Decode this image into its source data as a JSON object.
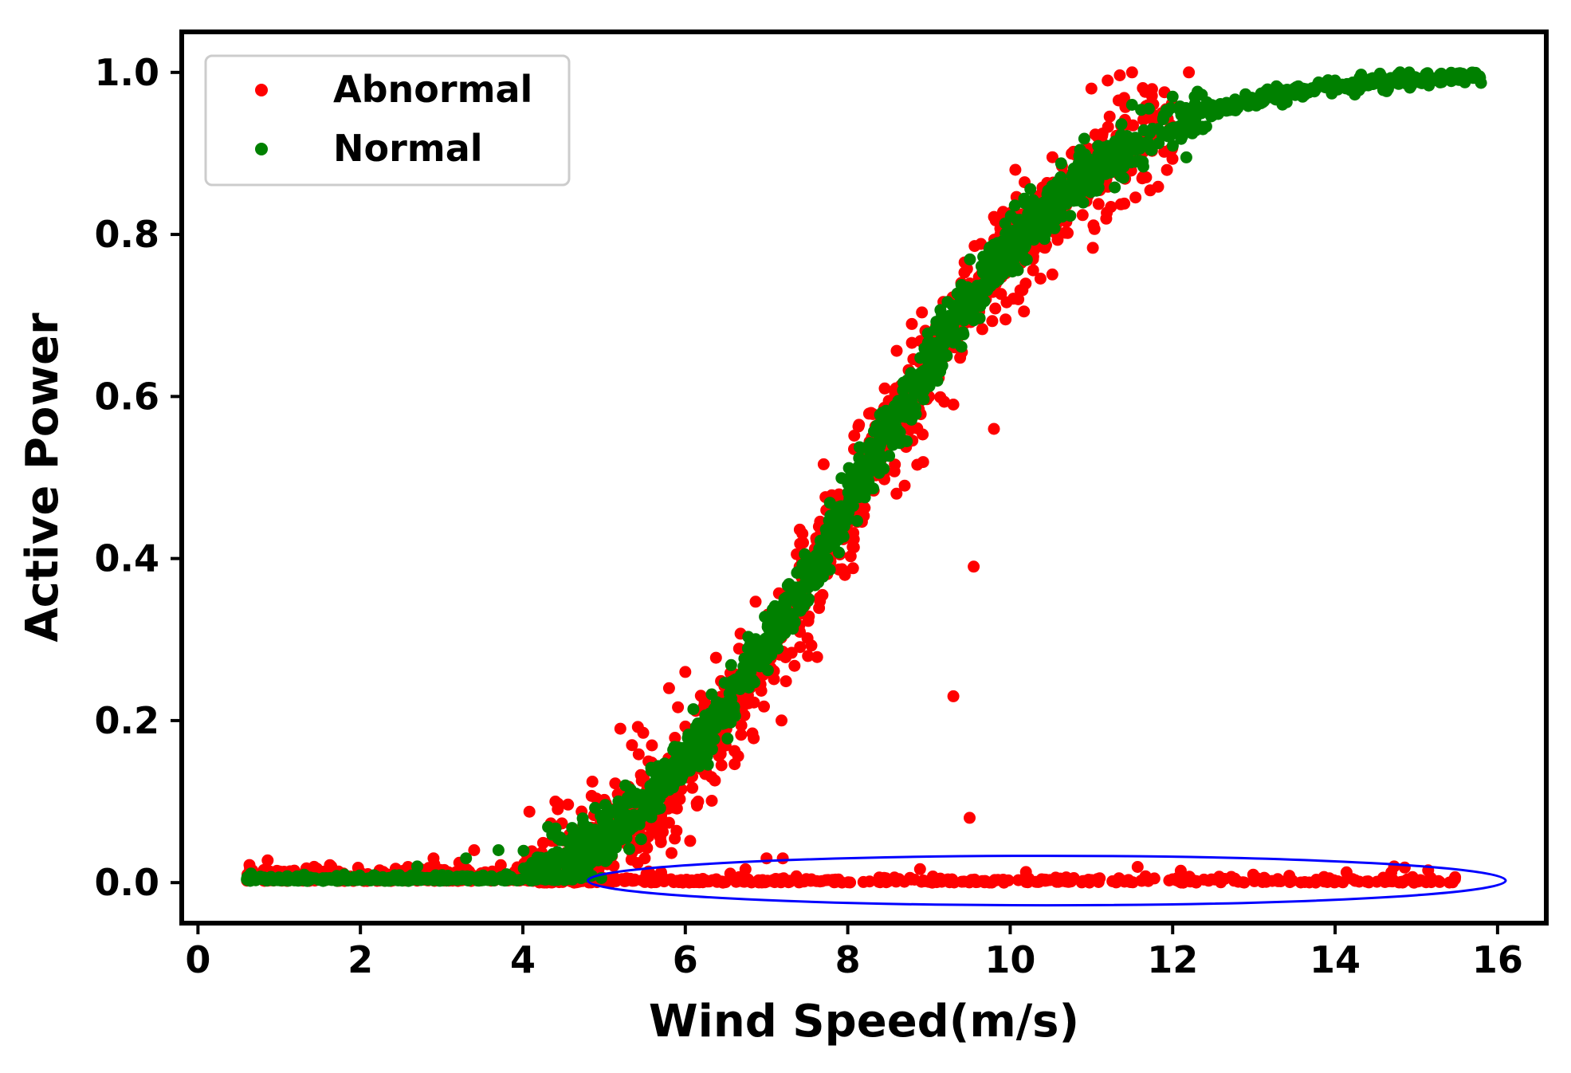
{
  "chart_data": {
    "type": "scatter",
    "title": "",
    "xlabel": "Wind Speed(m/s)",
    "ylabel": "Active Power",
    "xlim": [
      -0.2,
      16.6
    ],
    "ylim": [
      -0.05,
      1.05
    ],
    "xticks": [
      0,
      2,
      4,
      6,
      8,
      10,
      12,
      14,
      16
    ],
    "xtick_labels": [
      "0",
      "2",
      "4",
      "6",
      "8",
      "10",
      "12",
      "14",
      "16"
    ],
    "yticks": [
      0.0,
      0.2,
      0.4,
      0.6,
      0.8,
      1.0
    ],
    "ytick_labels": [
      "0.0",
      "0.2",
      "0.4",
      "0.6",
      "0.8",
      "1.0"
    ],
    "grid": false,
    "legend_position": "top-left",
    "series": [
      {
        "name": "Abnormal",
        "color": "#ff0000",
        "curve": {
          "x_start": 0.6,
          "x_end": 12.0,
          "scatter": 0.035,
          "count": 1300
        },
        "zero_band": {
          "x_start": 4.2,
          "x_end": 15.6,
          "y": 0.0,
          "count": 420
        },
        "sparse_points": [
          {
            "x": 2.2,
            "y": 0.01
          },
          {
            "x": 2.9,
            "y": 0.03
          },
          {
            "x": 3.4,
            "y": 0.04
          },
          {
            "x": 4.4,
            "y": 0.1
          },
          {
            "x": 5.2,
            "y": 0.19
          },
          {
            "x": 5.5,
            "y": 0.03
          },
          {
            "x": 5.6,
            "y": 0.08
          },
          {
            "x": 5.7,
            "y": 0.05
          },
          {
            "x": 5.8,
            "y": 0.24
          },
          {
            "x": 6.0,
            "y": 0.26
          },
          {
            "x": 7.0,
            "y": 0.03
          },
          {
            "x": 7.2,
            "y": 0.03
          },
          {
            "x": 8.4,
            "y": 0.51
          },
          {
            "x": 8.6,
            "y": 0.48
          },
          {
            "x": 8.7,
            "y": 0.49
          },
          {
            "x": 9.0,
            "y": 0.6
          },
          {
            "x": 9.2,
            "y": 0.66
          },
          {
            "x": 9.3,
            "y": 0.59
          },
          {
            "x": 9.3,
            "y": 0.23
          },
          {
            "x": 9.5,
            "y": 0.08
          },
          {
            "x": 9.55,
            "y": 0.39
          },
          {
            "x": 9.6,
            "y": 0.7
          },
          {
            "x": 9.7,
            "y": 0.72
          },
          {
            "x": 9.8,
            "y": 0.56
          },
          {
            "x": 10.0,
            "y": 0.81
          },
          {
            "x": 10.1,
            "y": 0.72
          },
          {
            "x": 10.5,
            "y": 0.85
          },
          {
            "x": 10.8,
            "y": 0.88
          },
          {
            "x": 11.0,
            "y": 0.98
          },
          {
            "x": 11.2,
            "y": 0.99
          },
          {
            "x": 11.5,
            "y": 1.0
          },
          {
            "x": 12.2,
            "y": 1.0
          }
        ]
      },
      {
        "name": "Normal",
        "color": "#008000",
        "curve": {
          "x_start": 0.6,
          "x_end": 15.8,
          "scatter": 0.018,
          "count": 1900
        },
        "sparse_points": [
          {
            "x": 2.7,
            "y": 0.02
          },
          {
            "x": 3.3,
            "y": 0.03
          },
          {
            "x": 3.7,
            "y": 0.04
          },
          {
            "x": 11.5,
            "y": 0.96
          },
          {
            "x": 12.0,
            "y": 0.97
          },
          {
            "x": 13.3,
            "y": 0.97
          },
          {
            "x": 13.6,
            "y": 0.97
          },
          {
            "x": 14.0,
            "y": 0.99
          },
          {
            "x": 14.8,
            "y": 1.0
          }
        ]
      }
    ],
    "power_curve_model": {
      "type": "logistic",
      "midpoint_x": 8.0,
      "steepness": 0.68,
      "cut_in_x": 4.0
    },
    "annotation": {
      "shape": "ellipse",
      "color": "#0000ff",
      "x_range": [
        4.8,
        16.1
      ],
      "y_range": [
        -0.028,
        0.033
      ],
      "label": ""
    }
  }
}
